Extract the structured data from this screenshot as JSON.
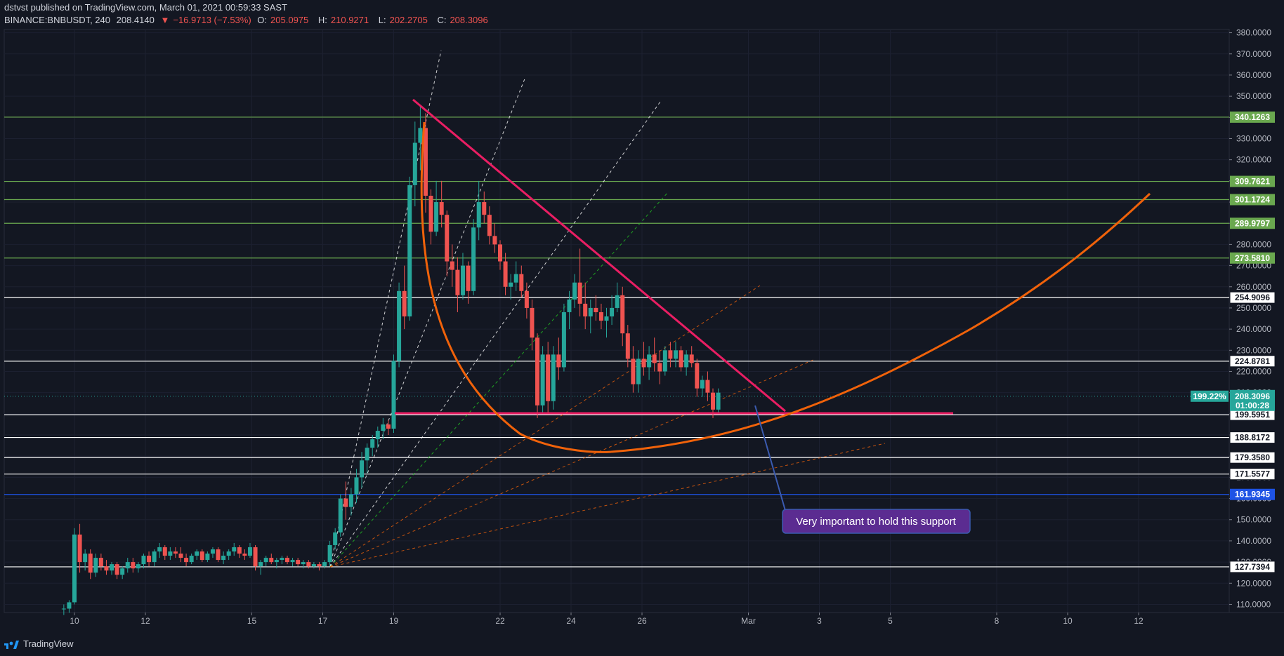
{
  "header": {
    "publisher": "dstvst published on TradingView.com, March 01, 2021 00:59:33 SAST",
    "symbol": "BINANCE:BNBUSDT, 240",
    "last": "208.4140",
    "change": "−16.9713 (−7.53%)",
    "open_label": "O:",
    "open": "205.0975",
    "high_label": "H:",
    "high": "210.9271",
    "low_label": "L:",
    "low": "202.2705",
    "close_label": "C:",
    "close": "208.3096"
  },
  "footer": {
    "brand": "TradingView"
  },
  "colors": {
    "background": "#131722",
    "up": "#26a69a",
    "down": "#ef5350",
    "triangle": "#e91e63",
    "arc": "#f0620a",
    "green_level": "#6aa84f",
    "blue_level": "#1e53e5",
    "white_level": "#ffffff",
    "callout_bg": "#5b2c91"
  },
  "chart_data": {
    "type": "candlestick",
    "ylim": [
      105,
      383
    ],
    "y_ticks": [
      "110.0000",
      "120.0000",
      "130.0000",
      "140.0000",
      "150.0000",
      "160.0000",
      "170.0000",
      "180.0000",
      "190.0000",
      "200.0000",
      "210.0000",
      "220.0000",
      "230.0000",
      "240.0000",
      "250.0000",
      "260.0000",
      "270.0000",
      "280.0000",
      "290.0000",
      "300.0000",
      "310.0000",
      "320.0000",
      "330.0000",
      "340.0000",
      "350.0000",
      "360.0000",
      "370.0000",
      "380.0000"
    ],
    "x_ticks": [
      {
        "label": "10",
        "day": 10
      },
      {
        "label": "12",
        "day": 12
      },
      {
        "label": "15",
        "day": 15
      },
      {
        "label": "17",
        "day": 17
      },
      {
        "label": "19",
        "day": 19
      },
      {
        "label": "22",
        "day": 22
      },
      {
        "label": "24",
        "day": 24
      },
      {
        "label": "26",
        "day": 26
      },
      {
        "label": "Mar",
        "day": 29
      },
      {
        "label": "3",
        "day": 31
      },
      {
        "label": "5",
        "day": 33
      },
      {
        "label": "8",
        "day": 36
      },
      {
        "label": "10",
        "day": 38
      },
      {
        "label": "12",
        "day": 40
      }
    ],
    "levels": [
      {
        "value": 340.1263,
        "label": "340.1263",
        "kind": "green"
      },
      {
        "value": 309.7621,
        "label": "309.7621",
        "kind": "green"
      },
      {
        "value": 301.1724,
        "label": "301.1724",
        "kind": "green"
      },
      {
        "value": 289.9797,
        "label": "289.9797",
        "kind": "green"
      },
      {
        "value": 273.581,
        "label": "273.5810",
        "kind": "green"
      },
      {
        "value": 254.9096,
        "label": "254.9096",
        "kind": "white"
      },
      {
        "value": 224.8781,
        "label": "224.8781",
        "kind": "white"
      },
      {
        "value": 199.5951,
        "label": "199.5951",
        "kind": "white"
      },
      {
        "value": 188.8172,
        "label": "188.8172",
        "kind": "white"
      },
      {
        "value": 179.358,
        "label": "179.3580",
        "kind": "white"
      },
      {
        "value": 171.5577,
        "label": "171.5577",
        "kind": "white"
      },
      {
        "value": 161.9345,
        "label": "161.9345",
        "kind": "blue"
      },
      {
        "value": 127.7394,
        "label": "127.7394",
        "kind": "white"
      }
    ],
    "current_price": {
      "value": 208.3096,
      "label": "208.3096",
      "countdown": "01:00:28",
      "percent_label": "199.22%"
    },
    "annotation": "Very important to hold this support",
    "candles": [
      [
        9.7,
        108,
        110,
        105,
        108
      ],
      [
        9.85,
        108,
        112,
        106,
        111
      ],
      [
        10.0,
        111,
        146,
        110,
        143
      ],
      [
        10.15,
        143,
        148,
        125,
        130
      ],
      [
        10.3,
        130,
        136,
        126,
        134
      ],
      [
        10.45,
        134,
        136,
        122,
        125
      ],
      [
        10.6,
        125,
        134,
        123,
        132
      ],
      [
        10.75,
        132,
        134,
        126,
        128
      ],
      [
        10.9,
        128,
        131,
        124,
        126
      ],
      [
        11.05,
        126,
        130,
        124,
        129
      ],
      [
        11.2,
        129,
        130,
        122,
        124
      ],
      [
        11.35,
        124,
        128,
        122,
        127
      ],
      [
        11.5,
        127,
        132,
        125,
        130
      ],
      [
        11.65,
        130,
        132,
        125,
        127
      ],
      [
        11.8,
        127,
        130,
        125,
        129
      ],
      [
        11.95,
        129,
        134,
        127,
        133
      ],
      [
        12.1,
        133,
        135,
        128,
        130
      ],
      [
        12.25,
        130,
        136,
        128,
        135
      ],
      [
        12.4,
        135,
        139,
        132,
        137
      ],
      [
        12.55,
        137,
        138,
        131,
        133
      ],
      [
        12.7,
        133,
        137,
        131,
        135
      ],
      [
        12.85,
        135,
        137,
        132,
        134
      ],
      [
        13.0,
        134,
        137,
        130,
        132
      ],
      [
        13.15,
        132,
        134,
        128,
        130
      ],
      [
        13.3,
        130,
        134,
        129,
        133
      ],
      [
        13.45,
        133,
        136,
        131,
        135
      ],
      [
        13.6,
        135,
        136,
        130,
        131
      ],
      [
        13.75,
        131,
        135,
        130,
        134
      ],
      [
        13.9,
        134,
        137,
        132,
        136
      ],
      [
        14.05,
        136,
        137,
        130,
        131
      ],
      [
        14.2,
        131,
        135,
        129,
        133
      ],
      [
        14.35,
        133,
        136,
        131,
        135
      ],
      [
        14.5,
        135,
        139,
        133,
        137
      ],
      [
        14.65,
        137,
        138,
        132,
        134
      ],
      [
        14.8,
        134,
        136,
        131,
        133
      ],
      [
        14.95,
        133,
        139,
        132,
        137
      ],
      [
        15.1,
        137,
        138,
        126,
        128
      ],
      [
        15.25,
        128,
        131,
        124,
        130
      ],
      [
        15.4,
        130,
        133,
        128,
        132
      ],
      [
        15.55,
        132,
        134,
        129,
        130
      ],
      [
        15.7,
        130,
        132,
        127,
        131
      ],
      [
        15.85,
        131,
        133,
        129,
        132
      ],
      [
        16.0,
        132,
        133,
        129,
        130
      ],
      [
        16.15,
        130,
        132,
        128,
        131
      ],
      [
        16.3,
        131,
        132,
        128,
        129
      ],
      [
        16.45,
        129,
        131,
        127,
        130
      ],
      [
        16.6,
        130,
        131,
        127,
        128
      ],
      [
        16.75,
        128,
        130,
        127,
        129
      ],
      [
        16.9,
        129,
        130,
        126,
        128
      ],
      [
        17.05,
        128,
        131,
        127,
        130
      ],
      [
        17.2,
        130,
        140,
        128,
        138
      ],
      [
        17.35,
        138,
        146,
        136,
        144
      ],
      [
        17.5,
        144,
        162,
        142,
        160
      ],
      [
        17.65,
        160,
        168,
        150,
        156
      ],
      [
        17.8,
        156,
        165,
        152,
        162
      ],
      [
        17.95,
        162,
        174,
        158,
        170
      ],
      [
        18.1,
        170,
        182,
        165,
        178
      ],
      [
        18.25,
        178,
        186,
        172,
        184
      ],
      [
        18.4,
        184,
        190,
        180,
        188
      ],
      [
        18.55,
        188,
        194,
        184,
        192
      ],
      [
        18.7,
        192,
        198,
        188,
        195
      ],
      [
        18.85,
        195,
        197,
        190,
        193
      ],
      [
        19.0,
        193,
        228,
        191,
        225
      ],
      [
        19.15,
        225,
        262,
        222,
        258
      ],
      [
        19.3,
        258,
        270,
        240,
        246
      ],
      [
        19.45,
        246,
        312,
        244,
        308
      ],
      [
        19.6,
        308,
        338,
        298,
        328
      ],
      [
        19.75,
        328,
        345,
        315,
        335
      ],
      [
        19.9,
        335,
        342,
        295,
        303
      ],
      [
        20.05,
        303,
        306,
        280,
        286
      ],
      [
        20.2,
        286,
        310,
        284,
        300
      ],
      [
        20.35,
        300,
        310,
        288,
        294
      ],
      [
        20.5,
        294,
        296,
        265,
        272
      ],
      [
        20.65,
        272,
        280,
        260,
        268
      ],
      [
        20.8,
        268,
        274,
        248,
        256
      ],
      [
        20.95,
        256,
        276,
        254,
        270
      ],
      [
        21.1,
        270,
        272,
        252,
        258
      ],
      [
        21.25,
        258,
        292,
        256,
        288
      ],
      [
        21.4,
        288,
        310,
        282,
        300
      ],
      [
        21.55,
        300,
        305,
        290,
        294
      ],
      [
        21.7,
        294,
        298,
        280,
        284
      ],
      [
        21.85,
        284,
        290,
        276,
        280
      ],
      [
        22.0,
        280,
        282,
        268,
        272
      ],
      [
        22.15,
        272,
        276,
        256,
        260
      ],
      [
        22.3,
        260,
        266,
        254,
        262
      ],
      [
        22.45,
        262,
        272,
        258,
        266
      ],
      [
        22.6,
        266,
        270,
        255,
        258
      ],
      [
        22.75,
        258,
        262,
        245,
        250
      ],
      [
        22.9,
        250,
        254,
        230,
        236
      ],
      [
        23.05,
        236,
        238,
        198,
        204
      ],
      [
        23.2,
        204,
        232,
        200,
        228
      ],
      [
        23.35,
        228,
        234,
        200,
        206
      ],
      [
        23.5,
        206,
        232,
        202,
        228
      ],
      [
        23.65,
        228,
        236,
        216,
        222
      ],
      [
        23.8,
        222,
        252,
        220,
        248
      ],
      [
        23.95,
        248,
        258,
        240,
        254
      ],
      [
        24.1,
        254,
        266,
        250,
        262
      ],
      [
        24.25,
        262,
        278,
        246,
        252
      ],
      [
        24.4,
        252,
        262,
        240,
        246
      ],
      [
        24.55,
        246,
        254,
        238,
        250
      ],
      [
        24.7,
        250,
        256,
        244,
        248
      ],
      [
        24.85,
        248,
        252,
        240,
        244
      ],
      [
        25.0,
        244,
        250,
        236,
        246
      ],
      [
        25.15,
        246,
        256,
        242,
        250
      ],
      [
        25.3,
        250,
        262,
        248,
        256
      ],
      [
        25.45,
        256,
        260,
        232,
        238
      ],
      [
        25.6,
        238,
        242,
        222,
        226
      ],
      [
        25.75,
        226,
        232,
        210,
        214
      ],
      [
        25.9,
        214,
        230,
        210,
        226
      ],
      [
        26.05,
        226,
        234,
        218,
        222
      ],
      [
        26.2,
        222,
        232,
        216,
        228
      ],
      [
        26.35,
        228,
        236,
        220,
        224
      ],
      [
        26.5,
        224,
        230,
        214,
        220
      ],
      [
        26.65,
        220,
        232,
        218,
        230
      ],
      [
        26.8,
        230,
        234,
        222,
        226
      ],
      [
        26.95,
        226,
        234,
        222,
        230
      ],
      [
        27.1,
        230,
        232,
        220,
        222
      ],
      [
        27.25,
        222,
        230,
        218,
        228
      ],
      [
        27.4,
        228,
        232,
        222,
        224
      ],
      [
        27.55,
        224,
        226,
        208,
        212
      ],
      [
        27.7,
        212,
        218,
        208,
        216
      ],
      [
        27.85,
        216,
        220,
        206,
        210
      ],
      [
        28.0,
        210,
        212,
        198,
        202
      ],
      [
        28.15,
        202,
        212,
        200,
        210
      ]
    ]
  }
}
